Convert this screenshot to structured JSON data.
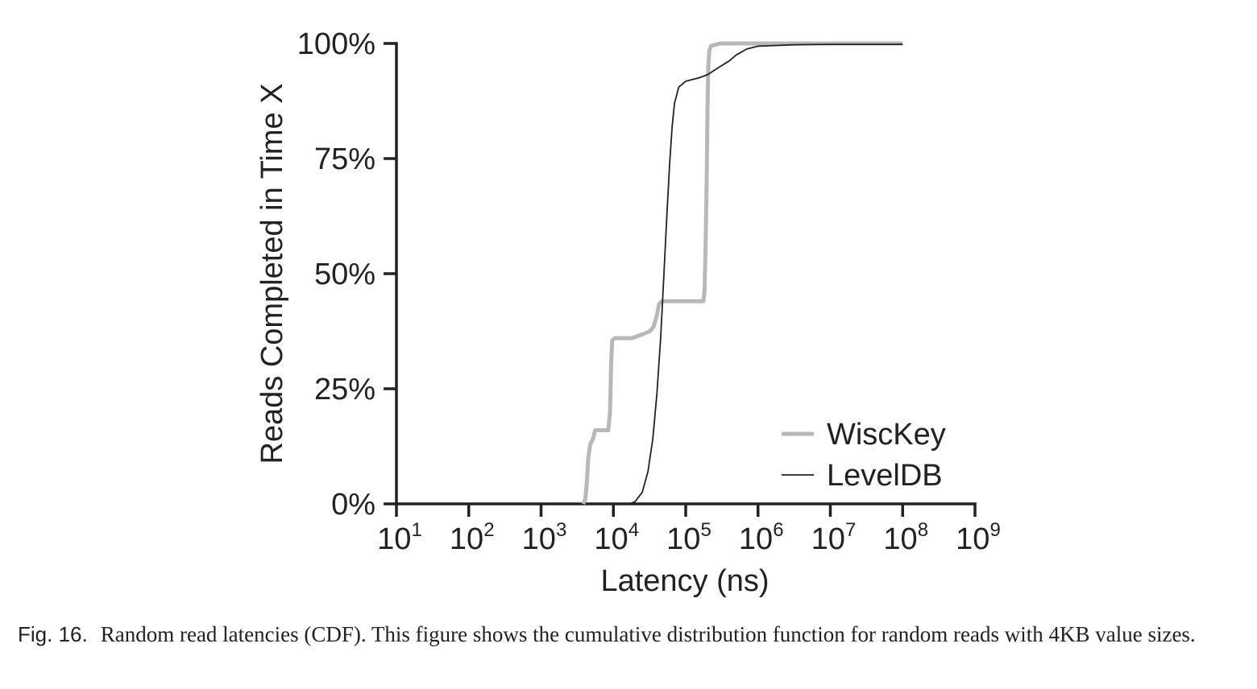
{
  "chart_data": {
    "type": "line",
    "x_scale": "log",
    "xlabel": "Latency (ns)",
    "ylabel": "Reads Completed in Time X",
    "xlim": [
      10,
      1000000000
    ],
    "ylim": [
      0,
      100
    ],
    "x_ticks": [
      {
        "value": 10,
        "base": "10",
        "exp": "1"
      },
      {
        "value": 100,
        "base": "10",
        "exp": "2"
      },
      {
        "value": 1000,
        "base": "10",
        "exp": "3"
      },
      {
        "value": 10000,
        "base": "10",
        "exp": "4"
      },
      {
        "value": 100000,
        "base": "10",
        "exp": "5"
      },
      {
        "value": 1000000,
        "base": "10",
        "exp": "6"
      },
      {
        "value": 10000000,
        "base": "10",
        "exp": "7"
      },
      {
        "value": 100000000,
        "base": "10",
        "exp": "8"
      },
      {
        "value": 1000000000,
        "base": "10",
        "exp": "9"
      }
    ],
    "y_ticks": [
      {
        "value": 0,
        "label": "0%"
      },
      {
        "value": 25,
        "label": "25%"
      },
      {
        "value": 50,
        "label": "50%"
      },
      {
        "value": 75,
        "label": "75%"
      },
      {
        "value": 100,
        "label": "100%"
      }
    ],
    "legend_position": "bottom-right",
    "grid": false,
    "series": [
      {
        "name": "WiscKey",
        "color": "#b8b8b8",
        "points": [
          [
            3800,
            0
          ],
          [
            4100,
            1
          ],
          [
            4300,
            5
          ],
          [
            4500,
            10
          ],
          [
            4800,
            13
          ],
          [
            5200,
            14
          ],
          [
            5600,
            16
          ],
          [
            8500,
            16
          ],
          [
            9000,
            20
          ],
          [
            9300,
            30
          ],
          [
            9600,
            35.5
          ],
          [
            10500,
            36
          ],
          [
            18000,
            36
          ],
          [
            25000,
            36.8
          ],
          [
            32000,
            37.5
          ],
          [
            36000,
            38.5
          ],
          [
            40000,
            41
          ],
          [
            43000,
            43.5
          ],
          [
            47000,
            44
          ],
          [
            175000,
            44
          ],
          [
            182000,
            46
          ],
          [
            188000,
            55
          ],
          [
            195000,
            70
          ],
          [
            200000,
            85
          ],
          [
            205000,
            95
          ],
          [
            212000,
            98.5
          ],
          [
            225000,
            99.5
          ],
          [
            300000,
            100
          ],
          [
            100000000,
            100
          ]
        ]
      },
      {
        "name": "LevelDB",
        "color": "#222222",
        "points": [
          [
            17000,
            0
          ],
          [
            20000,
            0.5
          ],
          [
            25000,
            2.5
          ],
          [
            30000,
            7
          ],
          [
            35000,
            14
          ],
          [
            40000,
            24
          ],
          [
            45000,
            36
          ],
          [
            50000,
            50
          ],
          [
            55000,
            63
          ],
          [
            60000,
            74
          ],
          [
            65000,
            82
          ],
          [
            70000,
            87
          ],
          [
            80000,
            90.5
          ],
          [
            100000,
            91.8
          ],
          [
            150000,
            92.5
          ],
          [
            200000,
            93.2
          ],
          [
            300000,
            95
          ],
          [
            400000,
            96.2
          ],
          [
            500000,
            97.5
          ],
          [
            700000,
            98.8
          ],
          [
            1000000,
            99.4
          ],
          [
            3000000,
            99.7
          ],
          [
            10000000,
            99.8
          ],
          [
            100000000,
            99.8
          ]
        ]
      }
    ]
  },
  "caption": {
    "label": "Fig. 16.",
    "text": "Random read latencies (CDF). This figure shows the cumulative distribution function for random reads with 4KB value sizes."
  }
}
